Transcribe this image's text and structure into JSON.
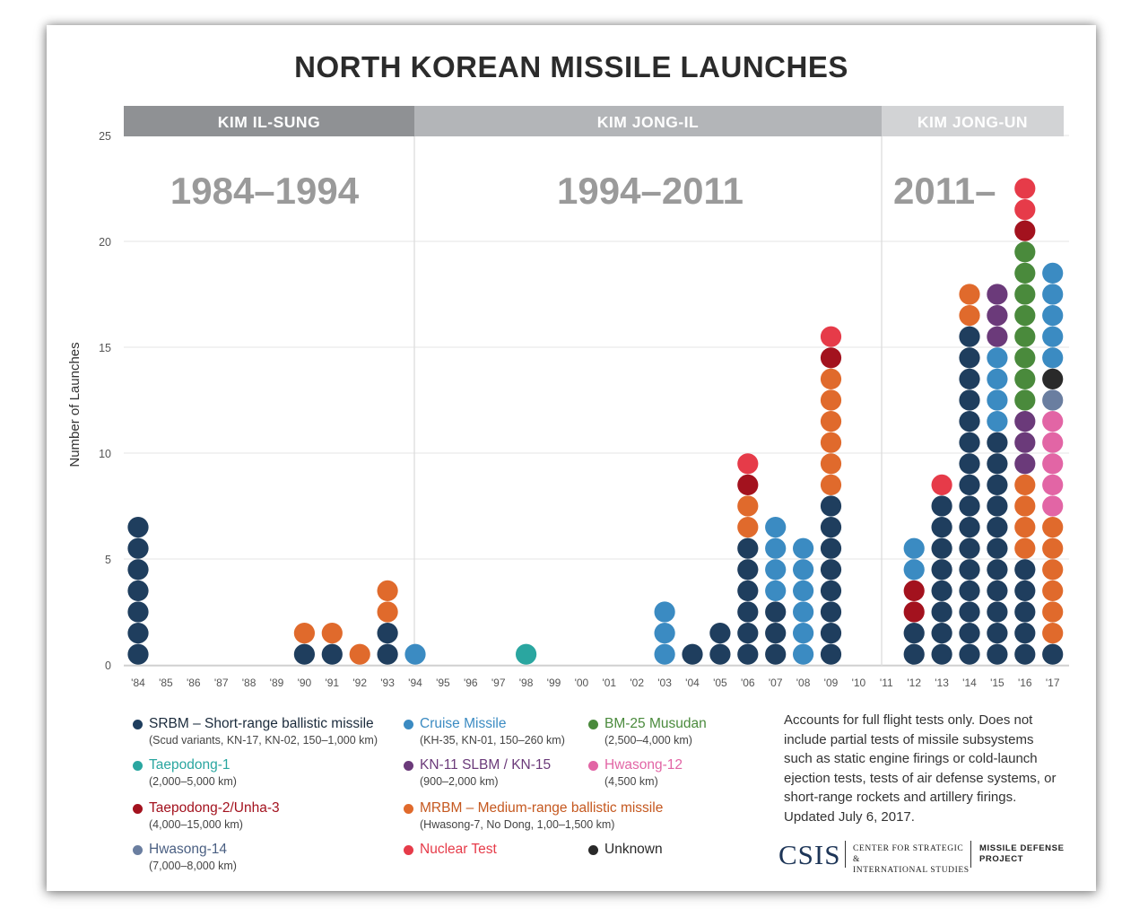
{
  "title": "NORTH KOREAN MISSILE LAUNCHES",
  "colors": {
    "SRBM": "#1f3e5e",
    "Cruise": "#3b8bc2",
    "Musudan": "#4a8a3c",
    "Taepodong1": "#2aa6a0",
    "KN11": "#6b3a7a",
    "Hwasong12": "#e265a5",
    "Taepodong2": "#a3121e",
    "MRBM": "#e06a2c",
    "Hwasong14": "#6a7ea0",
    "Nuclear": "#e63b49",
    "Unknown": "#2a2a2a"
  },
  "eras": [
    {
      "leader": "KIM IL-SUNG",
      "years": "1984–1994",
      "color": "#8f9194"
    },
    {
      "leader": "KIM JONG-IL",
      "years": "1994–2011",
      "color": "#b3b5b8"
    },
    {
      "leader": "KIM JONG-UN",
      "years": "2011–",
      "color": "#d2d3d5"
    }
  ],
  "chart_data": {
    "type": "scatter",
    "subtype": "stacked dot plot",
    "title": "NORTH KOREAN MISSILE LAUNCHES",
    "ylabel": "Number of Launches",
    "ylim": [
      0,
      25
    ],
    "yticks": [
      "0",
      "5",
      "10",
      "15",
      "20",
      "25"
    ],
    "grid": true,
    "categories": [
      "'84",
      "'85",
      "'86",
      "'87",
      "'88",
      "'89",
      "'90",
      "'91",
      "'92",
      "'93",
      "'94",
      "'95",
      "'96",
      "'97",
      "'98",
      "'99",
      "'00",
      "'01",
      "'02",
      "'03",
      "'04",
      "'05",
      "'06",
      "'07",
      "'08",
      "'09",
      "'10",
      "'11",
      "'12",
      "'13",
      "'14",
      "'15",
      "'16",
      "'17"
    ],
    "stacks": [
      [
        "SRBM",
        "SRBM",
        "SRBM",
        "SRBM",
        "SRBM",
        "SRBM",
        "SRBM"
      ],
      [],
      [],
      [],
      [],
      [],
      [
        "SRBM",
        "MRBM"
      ],
      [
        "SRBM",
        "MRBM"
      ],
      [
        "MRBM"
      ],
      [
        "SRBM",
        "SRBM",
        "MRBM",
        "MRBM"
      ],
      [
        "Cruise"
      ],
      [],
      [],
      [],
      [
        "Taepodong1"
      ],
      [],
      [],
      [],
      [],
      [
        "Cruise",
        "Cruise",
        "Cruise"
      ],
      [
        "SRBM"
      ],
      [
        "SRBM",
        "SRBM"
      ],
      [
        "SRBM",
        "SRBM",
        "SRBM",
        "SRBM",
        "SRBM",
        "SRBM",
        "MRBM",
        "MRBM",
        "Taepodong2",
        "Nuclear"
      ],
      [
        "SRBM",
        "SRBM",
        "SRBM",
        "Cruise",
        "Cruise",
        "Cruise",
        "Cruise"
      ],
      [
        "Cruise",
        "Cruise",
        "Cruise",
        "Cruise",
        "Cruise",
        "Cruise"
      ],
      [
        "SRBM",
        "SRBM",
        "SRBM",
        "SRBM",
        "SRBM",
        "SRBM",
        "SRBM",
        "SRBM",
        "MRBM",
        "MRBM",
        "MRBM",
        "MRBM",
        "MRBM",
        "MRBM",
        "Taepodong2",
        "Nuclear"
      ],
      [],
      [],
      [
        "SRBM",
        "SRBM",
        "Taepodong2",
        "Taepodong2",
        "Cruise",
        "Cruise"
      ],
      [
        "SRBM",
        "SRBM",
        "SRBM",
        "SRBM",
        "SRBM",
        "SRBM",
        "SRBM",
        "SRBM",
        "Nuclear"
      ],
      [
        "SRBM",
        "SRBM",
        "SRBM",
        "SRBM",
        "SRBM",
        "SRBM",
        "SRBM",
        "SRBM",
        "SRBM",
        "SRBM",
        "SRBM",
        "SRBM",
        "SRBM",
        "SRBM",
        "SRBM",
        "SRBM",
        "MRBM",
        "MRBM"
      ],
      [
        "SRBM",
        "SRBM",
        "SRBM",
        "SRBM",
        "SRBM",
        "SRBM",
        "SRBM",
        "SRBM",
        "SRBM",
        "SRBM",
        "SRBM",
        "Cruise",
        "Cruise",
        "Cruise",
        "Cruise",
        "KN11",
        "KN11",
        "KN11"
      ],
      [
        "SRBM",
        "SRBM",
        "SRBM",
        "SRBM",
        "SRBM",
        "MRBM",
        "MRBM",
        "MRBM",
        "MRBM",
        "KN11",
        "KN11",
        "KN11",
        "Musudan",
        "Musudan",
        "Musudan",
        "Musudan",
        "Musudan",
        "Musudan",
        "Musudan",
        "Musudan",
        "Taepodong2",
        "Nuclear",
        "Nuclear"
      ],
      [
        "SRBM",
        "MRBM",
        "MRBM",
        "MRBM",
        "MRBM",
        "MRBM",
        "MRBM",
        "Hwasong12",
        "Hwasong12",
        "Hwasong12",
        "Hwasong12",
        "Hwasong12",
        "Hwasong14",
        "Unknown",
        "Cruise",
        "Cruise",
        "Cruise",
        "Cruise",
        "Cruise"
      ]
    ],
    "eras": [
      {
        "label": "KIM IL-SUNG",
        "range": "1984–1994"
      },
      {
        "label": "KIM JONG-IL",
        "range": "1994–2011"
      },
      {
        "label": "KIM JONG-UN",
        "range": "2011–"
      }
    ]
  },
  "legend": [
    {
      "key": "SRBM",
      "name": "SRBM – Short-range ballistic missile",
      "sub": "(Scud variants, KN-17, KN-02, 150–1,000 km)",
      "text_color": "#1b2b3c"
    },
    {
      "key": "Cruise",
      "name": "Cruise Missile",
      "sub": "(KH-35, KN-01, 150–260 km)",
      "text_color": "#3b8bc2"
    },
    {
      "key": "Musudan",
      "name": "BM-25 Musudan",
      "sub": "(2,500–4,000 km)",
      "text_color": "#4a8a3c"
    },
    {
      "key": "Taepodong1",
      "name": "Taepodong-1",
      "sub": "(2,000–5,000 km)",
      "text_color": "#2aa6a0"
    },
    {
      "key": "KN11",
      "name": "KN-11 SLBM / KN-15",
      "sub": "(900–2,000 km)",
      "text_color": "#6b3a7a"
    },
    {
      "key": "Hwasong12",
      "name": "Hwasong-12",
      "sub": "(4,500 km)",
      "text_color": "#e265a5"
    },
    {
      "key": "Taepodong2",
      "name": "Taepodong-2/Unha-3",
      "sub": "(4,000–15,000 km)",
      "text_color": "#a3121e"
    },
    {
      "key": "MRBM",
      "name": "MRBM – Medium-range ballistic missile",
      "sub": "(Hwasong-7, No Dong, 1,00–1,500 km)",
      "text_color": "#c5581f"
    },
    {
      "key": "Hwasong14",
      "name": "Hwasong-14",
      "sub": "(7,000–8,000 km)",
      "text_color": "#4a5f82"
    },
    {
      "key": "Nuclear",
      "name": "Nuclear Test",
      "sub": "",
      "text_color": "#e63b49"
    },
    {
      "key": "Unknown",
      "name": "Unknown",
      "sub": "",
      "text_color": "#2a2a2a"
    }
  ],
  "note": "Accounts for full flight tests only. Does not include partial tests of missile subsystems such as static engine firings or cold-launch ejection tests, tests of air defense systems, or short-range rockets and artillery firings. Updated July 6, 2017.",
  "brand": {
    "logo": "CSIS",
    "center_line1": "CENTER FOR STRATEGIC &",
    "center_line2": "INTERNATIONAL STUDIES",
    "project_line1": "MISSILE DEFENSE",
    "project_line2": "PROJECT"
  }
}
